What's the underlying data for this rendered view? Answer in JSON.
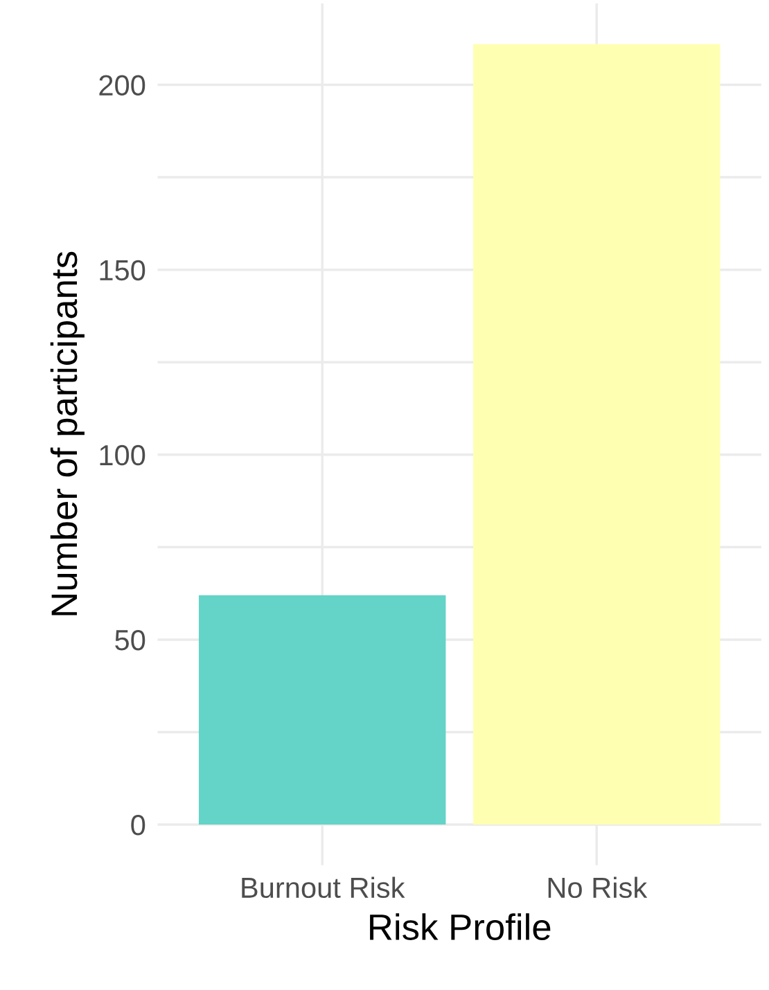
{
  "chart_data": {
    "type": "bar",
    "xlabel": "Risk Profile",
    "ylabel": "Number of participants",
    "categories": [
      "Burnout Risk",
      "No Risk"
    ],
    "values": [
      62,
      211
    ],
    "colors": [
      "#63d4c7",
      "#ffffb2"
    ],
    "ylim": [
      -11,
      222
    ],
    "yticks": [
      0,
      {
        "value": 25,
        "label": null
      },
      50,
      {
        "value": 75,
        "label": null
      },
      100,
      {
        "value": 125,
        "label": null
      },
      150,
      {
        "value": 175,
        "label": null
      },
      200
    ],
    "grid": true,
    "legend": false
  }
}
